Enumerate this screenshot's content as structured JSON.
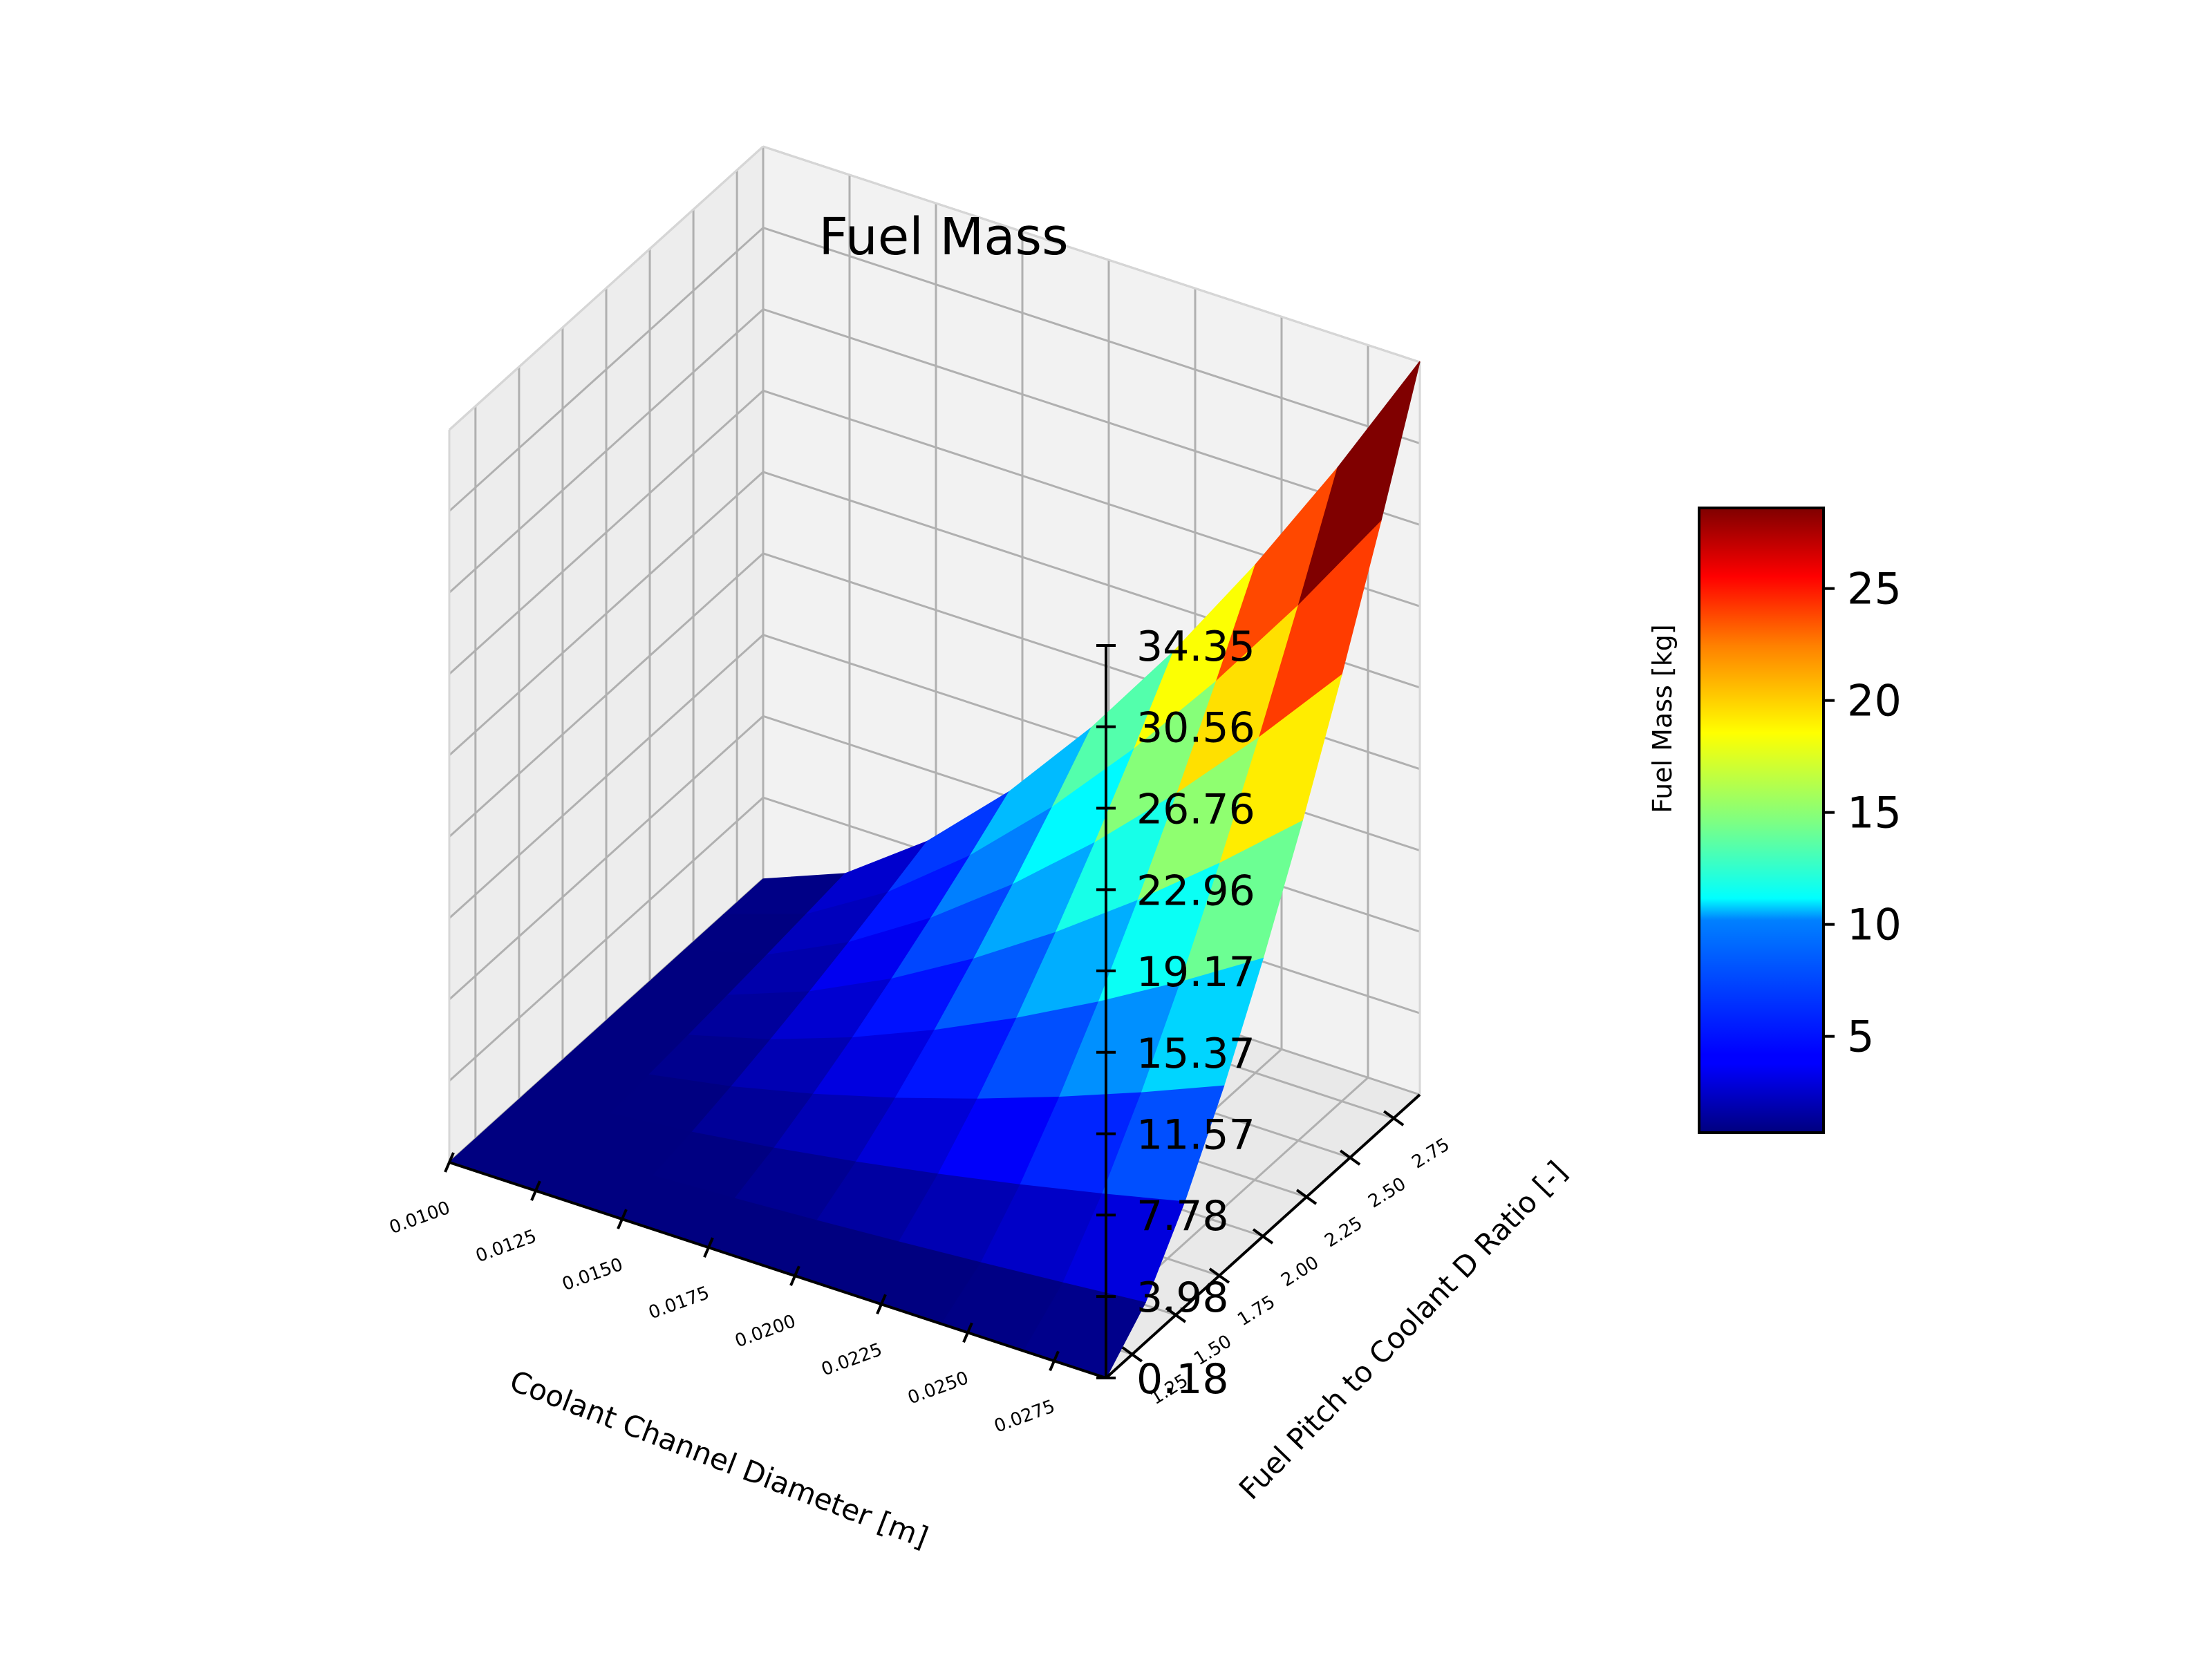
{
  "chart_data": {
    "type": "surface3d",
    "title": "Fuel Mass",
    "xlabel": "Coolant Channel Diameter [m]",
    "ylabel": "Fuel Pitch to Coolant D Ratio [-]",
    "zlabel": "Fuel Mass [kg]",
    "colormap": "jet",
    "grid": true,
    "xlim": [
      0.01,
      0.029
    ],
    "ylim": [
      1.1,
      2.9
    ],
    "zlim": [
      0.18,
      34.35
    ],
    "x_ticks": [
      "0.0100",
      "0.0125",
      "0.0150",
      "0.0175",
      "0.0200",
      "0.0225",
      "0.0250",
      "0.0275"
    ],
    "y_ticks": [
      "1.25",
      "1.50",
      "1.75",
      "2.00",
      "2.25",
      "2.50",
      "2.75"
    ],
    "z_ticks": [
      "0.18",
      "3.98",
      "7.78",
      "11.57",
      "15.37",
      "19.17",
      "22.96",
      "26.76",
      "30.56",
      "34.35"
    ],
    "colorbar": {
      "min": 0.7,
      "max": 28.6,
      "ticks": [
        "5",
        "10",
        "15",
        "20",
        "25"
      ],
      "position": "right"
    },
    "surface": {
      "x_range": [
        0.01,
        0.029
      ],
      "y_range": [
        1.1,
        2.9
      ],
      "grid_size": [
        9,
        9
      ],
      "z_formula": "34.2 * ((x - 0.01) / 0.019)^1.5 * ((y - 1.1) / 1.8)^1.4 + 0.18"
    }
  }
}
